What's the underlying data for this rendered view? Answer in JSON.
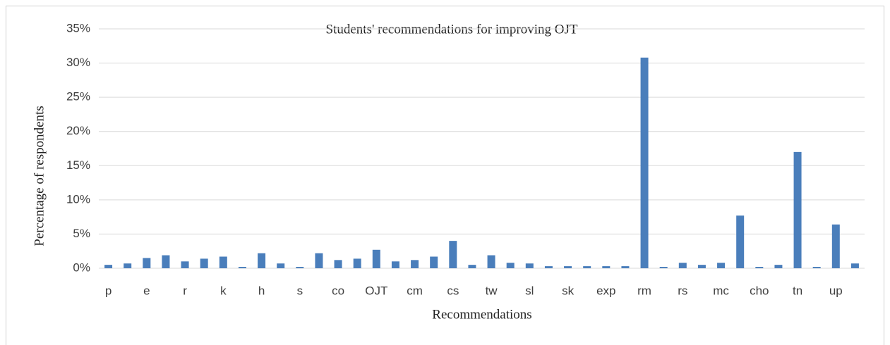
{
  "chart_data": {
    "type": "bar",
    "title": "Students' recommendations for improving OJT",
    "x_label": "Recommendations",
    "y_label": "Percentage of respondents",
    "categories": [
      "p",
      null,
      "e",
      null,
      "r",
      null,
      "k",
      null,
      "h",
      null,
      "s",
      null,
      "co",
      null,
      "OJT",
      null,
      "cm",
      null,
      "cs",
      null,
      "tw",
      null,
      "sl",
      null,
      "sk",
      null,
      "exp",
      null,
      "rm",
      null,
      "rs",
      null,
      "mc",
      null,
      "cho",
      null,
      "tn",
      null,
      "up",
      null
    ],
    "values": [
      0.5,
      0.7,
      1.5,
      1.9,
      1.0,
      1.4,
      1.7,
      0.2,
      2.2,
      0.7,
      0.2,
      2.2,
      1.2,
      1.4,
      2.7,
      1.0,
      1.2,
      1.7,
      4.0,
      0.5,
      1.9,
      0.8,
      0.7,
      0.3,
      0.3,
      0.3,
      0.3,
      0.3,
      30.8,
      0.2,
      0.8,
      0.5,
      0.8,
      7.7,
      0.2,
      0.5,
      17.0,
      0.2,
      6.4,
      0.7
    ],
    "color": "#4a7ebb",
    "ylim": [
      0,
      35
    ],
    "yticks": [
      {
        "value": 0,
        "label": "0%"
      },
      {
        "value": 5,
        "label": "5%"
      },
      {
        "value": 10,
        "label": "10%"
      },
      {
        "value": 15,
        "label": "15%"
      },
      {
        "value": 20,
        "label": "20%"
      },
      {
        "value": 25,
        "label": "25%"
      },
      {
        "value": 30,
        "label": "30%"
      },
      {
        "value": 35,
        "label": "35%"
      }
    ],
    "grid": true
  }
}
